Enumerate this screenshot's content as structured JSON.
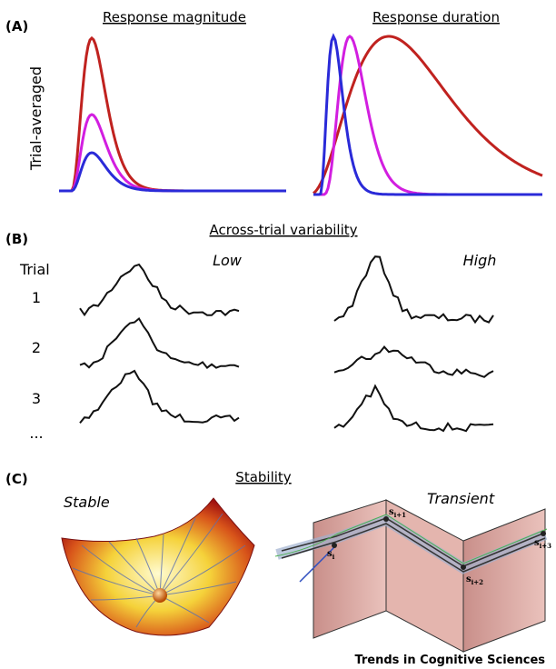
{
  "panel_a": {
    "label": "(A)",
    "left_title": "Response magnitude",
    "right_title": "Response duration",
    "y_label": "Trial-averaged"
  },
  "panel_b": {
    "label": "(B)",
    "title": "Across-trial variability",
    "trial_header": "Trial",
    "trials": [
      "1",
      "2",
      "3",
      "..."
    ],
    "low": "Low",
    "high": "High"
  },
  "panel_c": {
    "label": "(C)",
    "title": "Stability",
    "stable": "Stable",
    "transient": "Transient",
    "states": [
      "s",
      "s",
      "s",
      "s"
    ],
    "state_subs": [
      "i",
      "i+1",
      "i+2",
      "i+3"
    ]
  },
  "footer": "Trends in Cognitive Sciences"
}
